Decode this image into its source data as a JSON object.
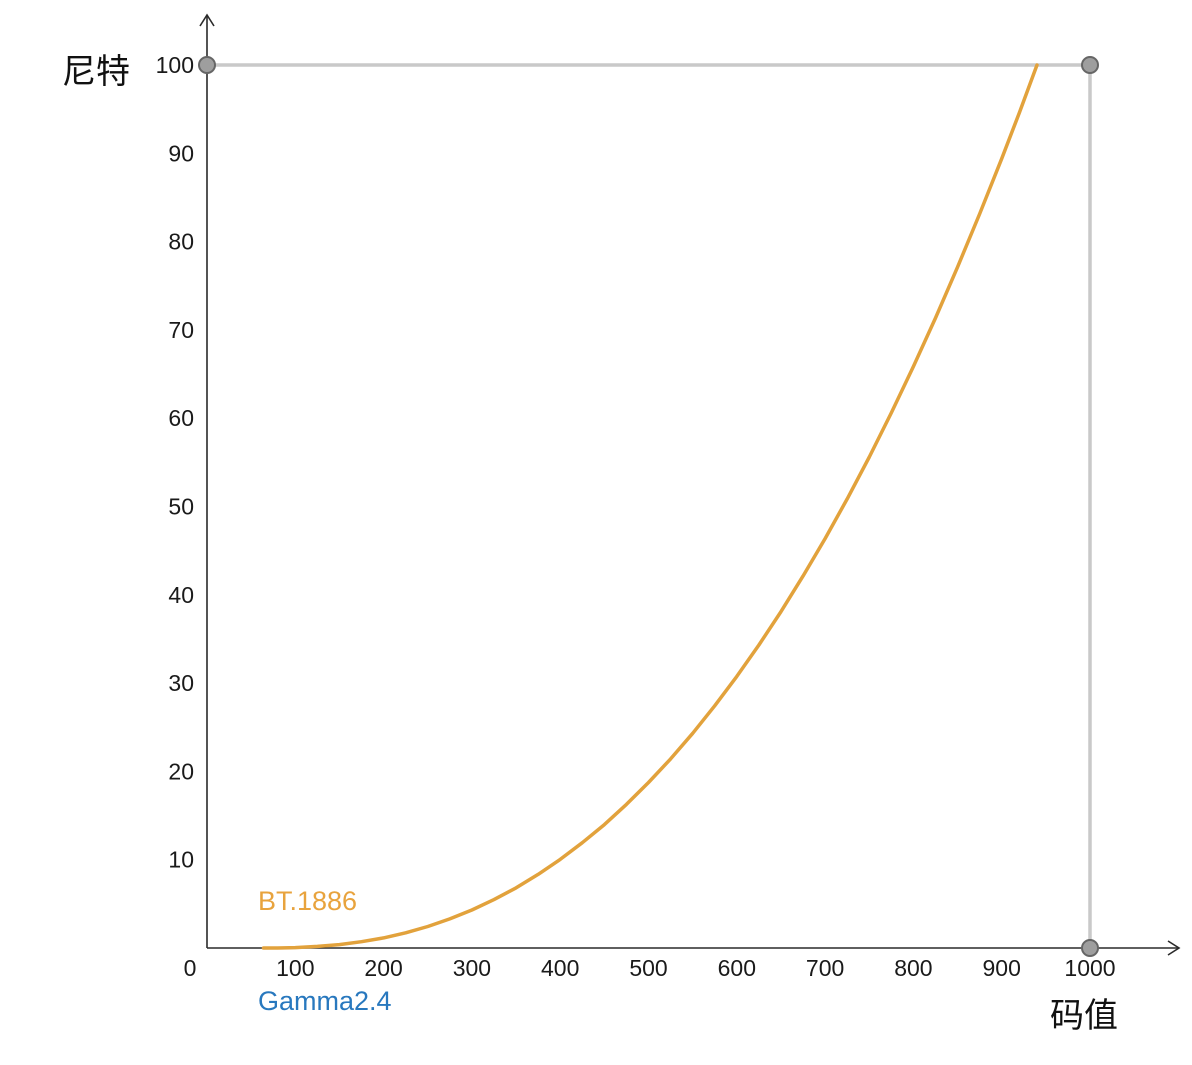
{
  "chart_data": {
    "type": "line",
    "title": "",
    "xlabel": "码值",
    "ylabel": "尼特",
    "xlim": [
      0,
      1000
    ],
    "ylim": [
      0,
      100
    ],
    "grid": false,
    "legend_position": "none",
    "x_ticks": [
      0,
      100,
      200,
      300,
      400,
      500,
      600,
      700,
      800,
      900,
      1000
    ],
    "y_ticks": [
      10,
      20,
      30,
      40,
      50,
      60,
      70,
      80,
      90,
      100
    ],
    "series": [
      {
        "name": "BT.1886",
        "color": "#E2A23C",
        "points": [
          [
            64,
            0
          ],
          [
            80,
            0.004
          ],
          [
            100,
            0.05
          ],
          [
            125,
            0.18
          ],
          [
            150,
            0.38
          ],
          [
            175,
            0.71
          ],
          [
            200,
            1.14
          ],
          [
            225,
            1.72
          ],
          [
            250,
            2.43
          ],
          [
            275,
            3.29
          ],
          [
            300,
            4.3
          ],
          [
            325,
            5.48
          ],
          [
            350,
            6.81
          ],
          [
            375,
            8.33
          ],
          [
            400,
            10.03
          ],
          [
            425,
            11.92
          ],
          [
            450,
            13.98
          ],
          [
            475,
            16.26
          ],
          [
            500,
            18.74
          ],
          [
            525,
            21.42
          ],
          [
            550,
            24.32
          ],
          [
            575,
            27.43
          ],
          [
            600,
            30.76
          ],
          [
            625,
            34.32
          ],
          [
            650,
            38.1
          ],
          [
            675,
            42.12
          ],
          [
            700,
            46.37
          ],
          [
            725,
            50.86
          ],
          [
            750,
            55.61
          ],
          [
            775,
            60.6
          ],
          [
            800,
            65.85
          ],
          [
            825,
            71.35
          ],
          [
            850,
            77.1
          ],
          [
            875,
            83.13
          ],
          [
            900,
            89.39
          ],
          [
            920,
            94.61
          ],
          [
            940,
            100
          ]
        ]
      }
    ],
    "reference": {
      "line_color": "#C9C9C9",
      "lines": [
        {
          "x1": 0,
          "y1": 100,
          "x2": 1000,
          "y2": 100
        },
        {
          "x1": 1000,
          "y1": 0,
          "x2": 1000,
          "y2": 100
        }
      ],
      "points": [
        {
          "x": 0,
          "y": 100
        },
        {
          "x": 1000,
          "y": 100
        },
        {
          "x": 1000,
          "y": 0
        }
      ],
      "point_fill": "#9E9E9E",
      "point_stroke": "#666666"
    },
    "annotations": [
      {
        "text": "BT.1886",
        "color": "#E8A33D"
      },
      {
        "text": "Gamma2.4",
        "color": "#2878BE"
      }
    ]
  },
  "labels": {
    "y_axis_title": "尼特",
    "x_axis_title": "码值",
    "curve_label": "BT.1886",
    "gamma_label": "Gamma2.4"
  },
  "colors": {
    "curve": "#E2A23C",
    "curve_label": "#E8A33D",
    "gamma_label": "#2878BE",
    "axis": "#2A2A2A",
    "reference_line": "#C9C9C9",
    "reference_point_fill": "#9E9E9E",
    "reference_point_stroke": "#666666"
  }
}
